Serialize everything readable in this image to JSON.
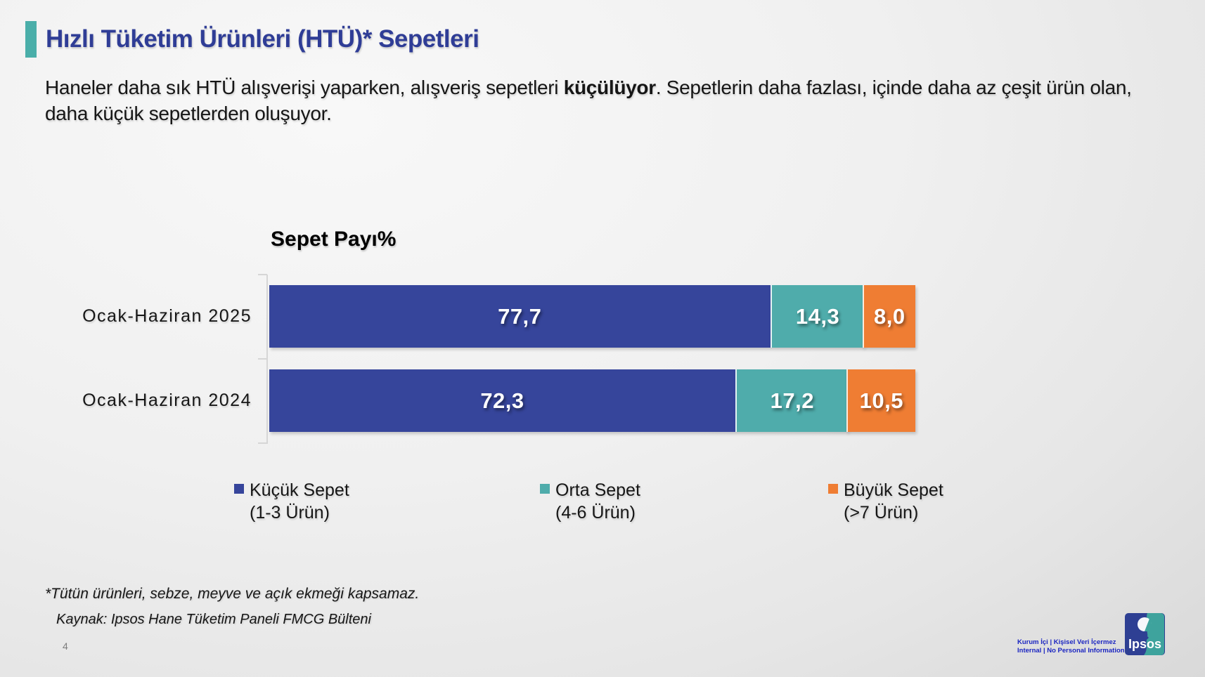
{
  "slide": {
    "title": "Hızlı Tüketim Ürünleri (HTÜ)* Sepetleri",
    "subtitle": {
      "before_bold": "Haneler daha sık HTÜ alışverişi yaparken, alışveriş sepetleri ",
      "bold": "küçülüyor",
      "after_bold": ". Sepetlerin daha fazlası, içinde daha az çeşit ürün olan, daha küçük sepetlerden oluşuyor."
    },
    "footnote": "*Tütün ürünleri, sebze, meyve ve açık ekmeği kapsamaz.",
    "source": "Kaynak: Ipsos Hane Tüketim Paneli FMCG Bülteni",
    "page_number": "4",
    "footer": {
      "confidential_line1": "Kurum İçi | Kişisel Veri İçermez",
      "confidential_line2": "Internal | No Personal Information"
    },
    "logo_text": "Ipsos"
  },
  "colors": {
    "title_blue": "#2F3D96",
    "accent_teal": "#4AAEA9",
    "series_blue": "#36459B",
    "series_teal": "#4FACAB",
    "series_orange": "#EF7D33",
    "footer_blue": "#1B25C1",
    "background": "#EDEDED"
  },
  "chart_data": {
    "type": "bar",
    "orientation": "horizontal",
    "stacked": true,
    "title": "Sepet Payı%",
    "unit": "%",
    "xlim": [
      0,
      100
    ],
    "grid": false,
    "legend_position": "bottom",
    "categories": [
      "Ocak-Haziran 2025",
      "Ocak-Haziran 2024"
    ],
    "series": [
      {
        "name": "Küçük Sepet (1-3 Ürün)",
        "color": "#36459B",
        "values": [
          77.7,
          72.3
        ]
      },
      {
        "name": "Orta Sepet (4-6 Ürün)",
        "color": "#4FACAB",
        "values": [
          14.3,
          17.2
        ]
      },
      {
        "name": "Büyük Sepet (>7 Ürün)",
        "color": "#EF7D33",
        "values": [
          8.0,
          10.5
        ]
      }
    ],
    "value_labels": [
      [
        "77,7",
        "14,3",
        "8,0"
      ],
      [
        "72,3",
        "17,2",
        "10,5"
      ]
    ],
    "legend": [
      {
        "line1": "Küçük Sepet",
        "line2": "(1-3 Ürün)",
        "color": "#36459B"
      },
      {
        "line1": "Orta Sepet",
        "line2": "(4-6 Ürün)",
        "color": "#4FACAB"
      },
      {
        "line1": "Büyük Sepet",
        "line2": "(>7 Ürün)",
        "color": "#EF7D33"
      }
    ]
  }
}
